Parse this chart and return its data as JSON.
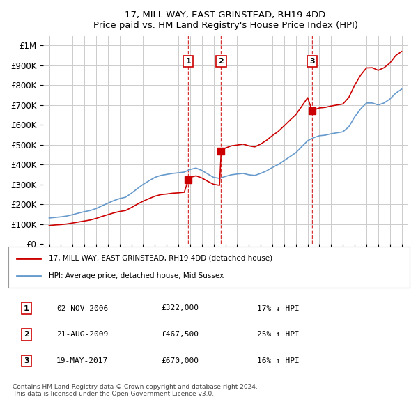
{
  "title": "17, MILL WAY, EAST GRINSTEAD, RH19 4DD",
  "subtitle": "Price paid vs. HM Land Registry's House Price Index (HPI)",
  "hpi_color": "#6699cc",
  "price_color": "#cc0000",
  "sale_color": "#cc0000",
  "vline_color": "#cc0000",
  "grid_color": "#cccccc",
  "bg_color": "#ffffff",
  "ylim": [
    0,
    1050000
  ],
  "yticks": [
    0,
    100000,
    200000,
    300000,
    400000,
    500000,
    600000,
    700000,
    800000,
    900000,
    1000000
  ],
  "ytick_labels": [
    "£0",
    "£100K",
    "£200K",
    "£300K",
    "£400K",
    "£500K",
    "£600K",
    "£700K",
    "£800K",
    "£900K",
    "£1M"
  ],
  "legend_entries": [
    "17, MILL WAY, EAST GRINSTEAD, RH19 4DD (detached house)",
    "HPI: Average price, detached house, Mid Sussex"
  ],
  "table_rows": [
    [
      "1",
      "02-NOV-2006",
      "£322,000",
      "17% ↓ HPI"
    ],
    [
      "2",
      "21-AUG-2009",
      "£467,500",
      "25% ↑ HPI"
    ],
    [
      "3",
      "19-MAY-2017",
      "£670,000",
      "16% ↑ HPI"
    ]
  ],
  "footer": "Contains HM Land Registry data © Crown copyright and database right 2024.\nThis data is licensed under the Open Government Licence v3.0.",
  "sale_dates": [
    2006.84,
    2009.64,
    2017.38
  ],
  "sale_prices": [
    322000,
    467500,
    670000
  ],
  "sale_labels": [
    "1",
    "2",
    "3"
  ],
  "vline_dates": [
    2006.84,
    2009.64,
    2017.38
  ]
}
